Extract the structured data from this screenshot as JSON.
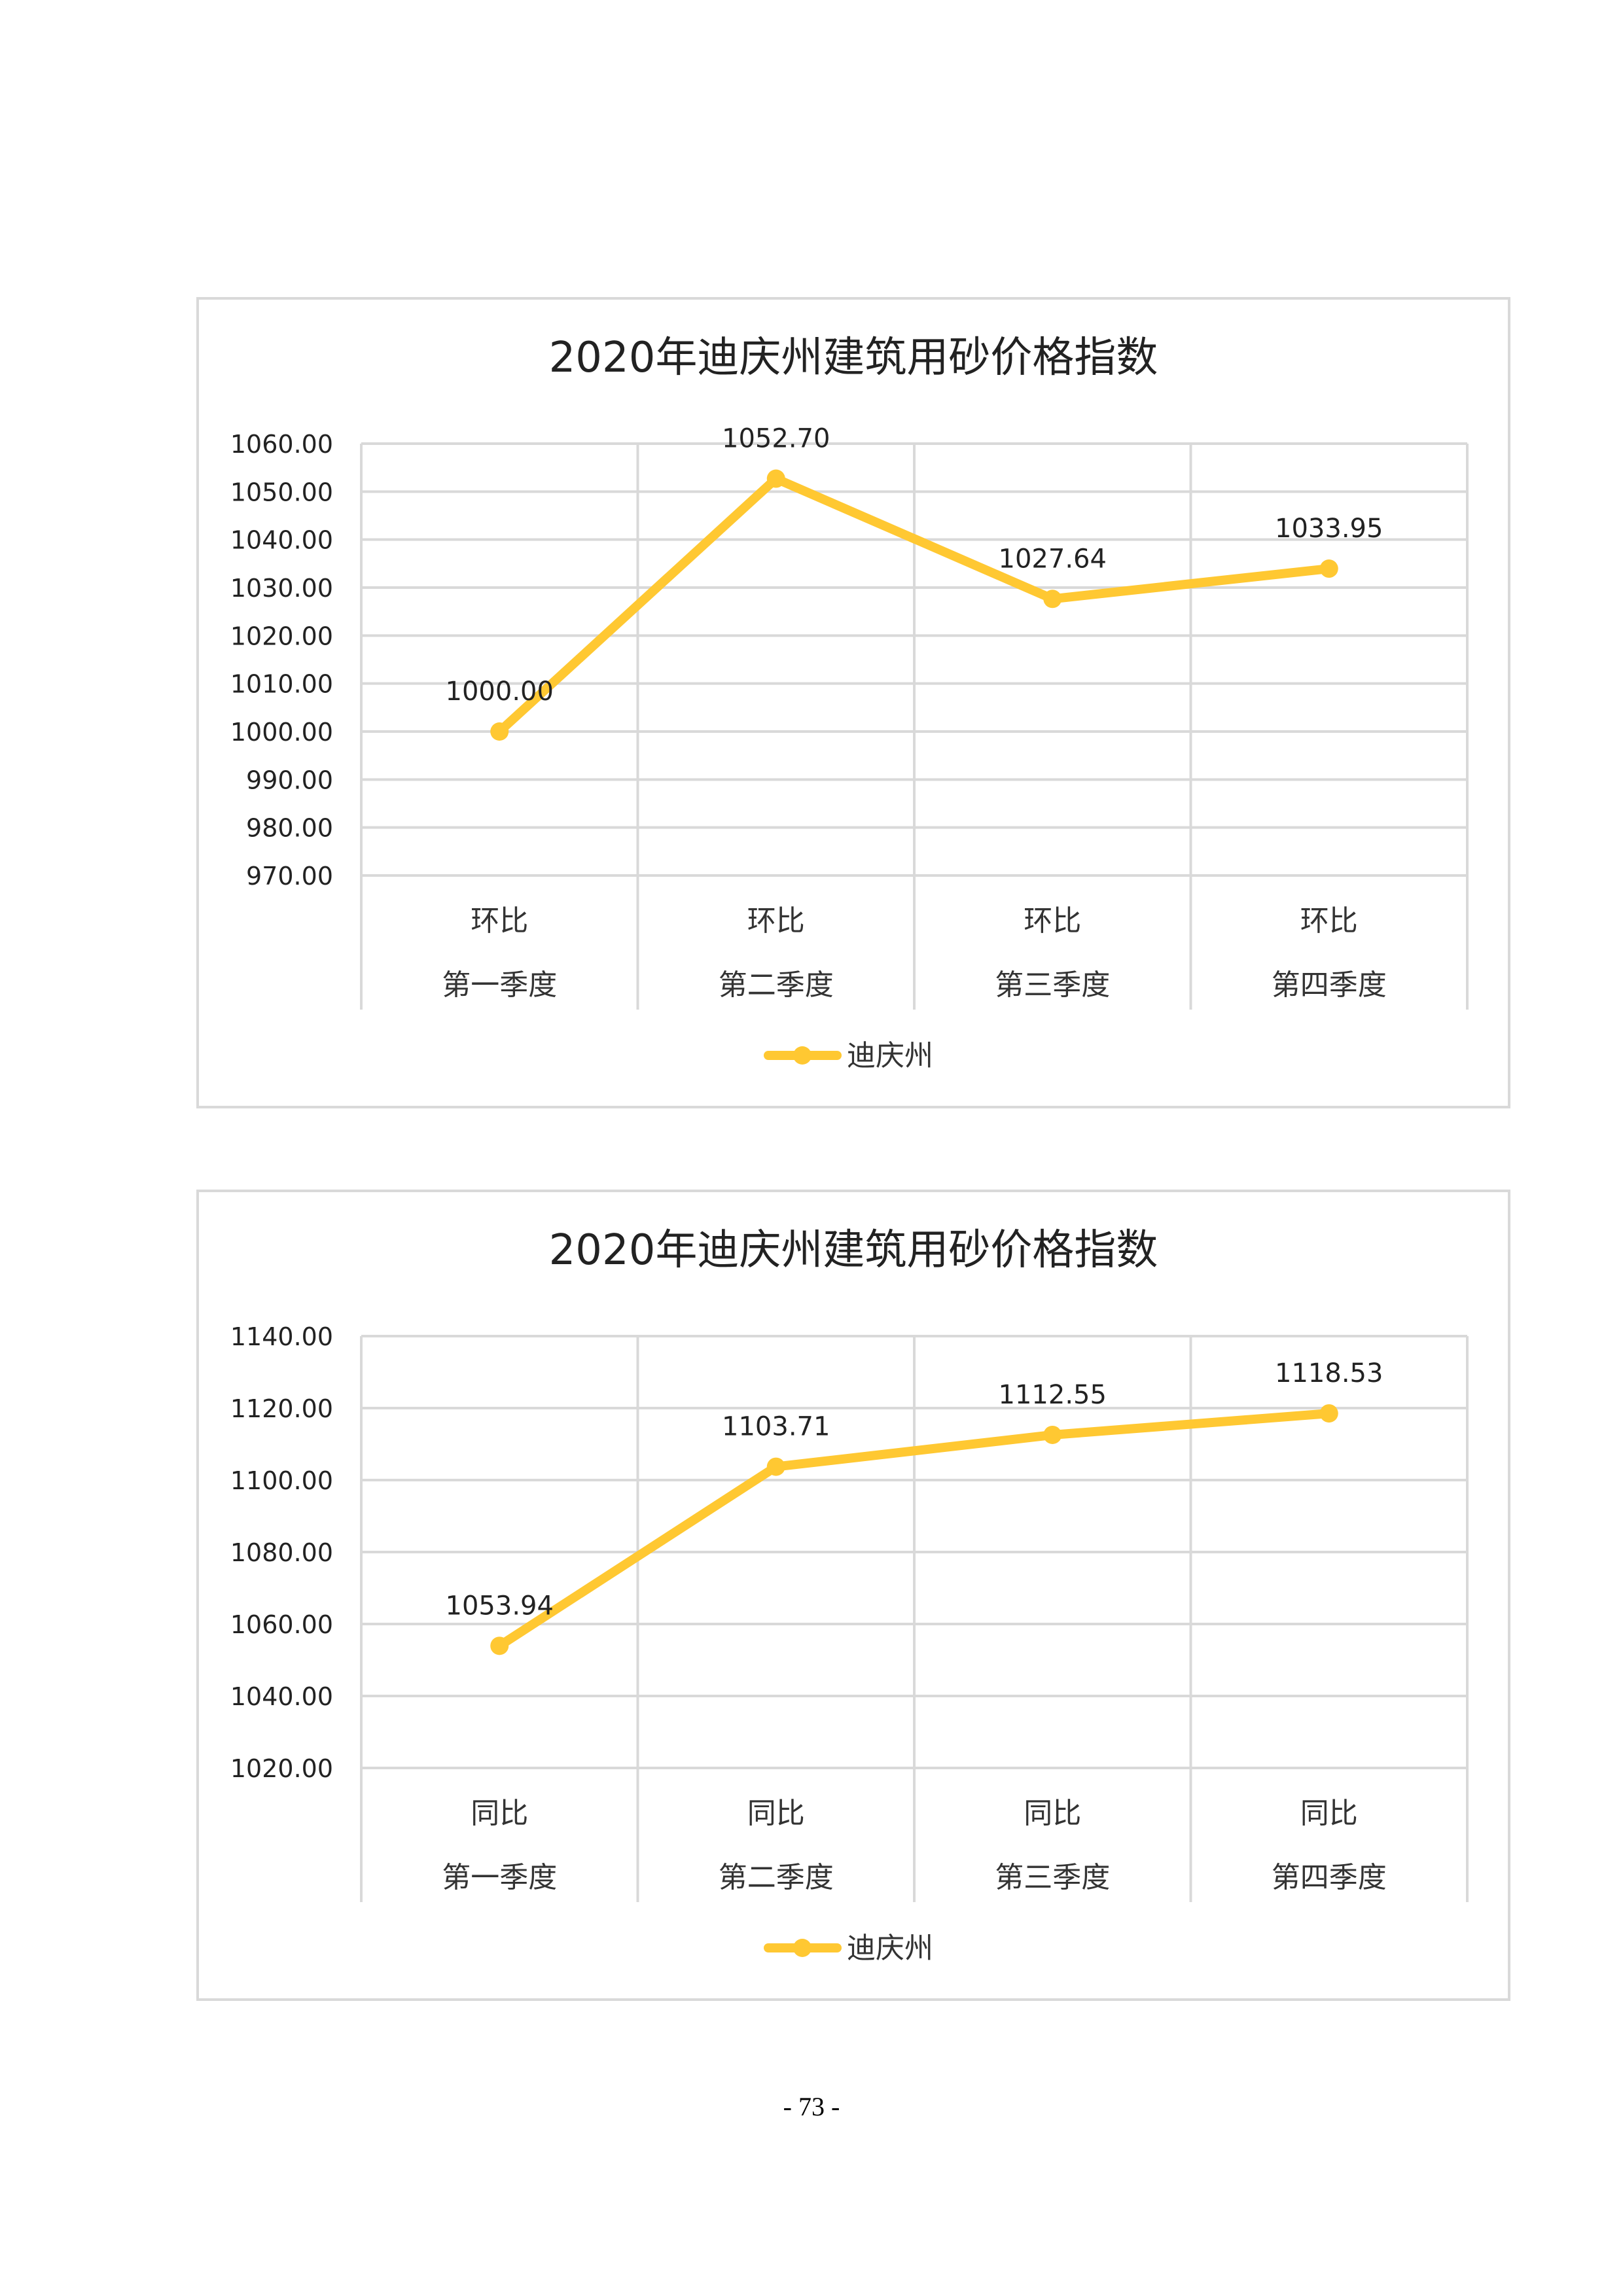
{
  "chart_data": [
    {
      "type": "line",
      "title": "2020年迪庆州建筑用砂价格指数",
      "categories": [
        [
          "环比",
          "第一季度"
        ],
        [
          "环比",
          "第二季度"
        ],
        [
          "环比",
          "第三季度"
        ],
        [
          "环比",
          "第四季度"
        ]
      ],
      "series": [
        {
          "name": "迪庆州",
          "values": [
            1000.0,
            1052.7,
            1027.64,
            1033.95
          ]
        }
      ],
      "value_labels": [
        "1000.00",
        "1052.70",
        "1027.64",
        "1033.95"
      ],
      "ylim": [
        970,
        1060
      ],
      "ystep": 10,
      "yticks": [
        "970.00",
        "980.00",
        "990.00",
        "1000.00",
        "1010.00",
        "1020.00",
        "1030.00",
        "1040.00",
        "1050.00",
        "1060.00"
      ],
      "grid": true,
      "legend": "bottom",
      "color": "#FFC832"
    },
    {
      "type": "line",
      "title": "2020年迪庆州建筑用砂价格指数",
      "categories": [
        [
          "同比",
          "第一季度"
        ],
        [
          "同比",
          "第二季度"
        ],
        [
          "同比",
          "第三季度"
        ],
        [
          "同比",
          "第四季度"
        ]
      ],
      "series": [
        {
          "name": "迪庆州",
          "values": [
            1053.94,
            1103.71,
            1112.55,
            1118.53
          ]
        }
      ],
      "value_labels": [
        "1053.94",
        "1103.71",
        "1112.55",
        "1118.53"
      ],
      "ylim": [
        1020,
        1140
      ],
      "ystep": 20,
      "yticks": [
        "1020.00",
        "1040.00",
        "1060.00",
        "1080.00",
        "1100.00",
        "1120.00",
        "1140.00"
      ],
      "grid": true,
      "legend": "bottom",
      "color": "#FFC832"
    }
  ],
  "footer": {
    "page_number": "- 73 -"
  }
}
